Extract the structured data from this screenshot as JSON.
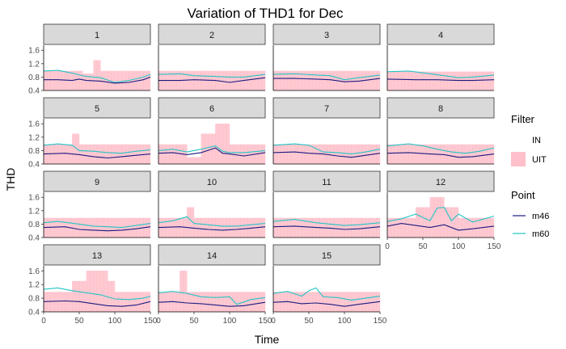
{
  "chart_data": {
    "type": "line",
    "title": "Variation of THD1 for Dec",
    "xlabel": "Time",
    "ylabel": "THD",
    "xlim": [
      0,
      150
    ],
    "ylim": [
      0.4,
      1.75
    ],
    "x_ticks": [
      "0",
      "50",
      "100",
      "150"
    ],
    "y_ticks": [
      "0.4",
      "0.8",
      "1.2",
      "1.6"
    ],
    "facets": [
      "1",
      "2",
      "3",
      "4",
      "5",
      "6",
      "7",
      "8",
      "9",
      "10",
      "11",
      "12",
      "13",
      "14",
      "15"
    ],
    "legend_filter": {
      "title": "Filter",
      "entries": [
        "IN",
        "UIT"
      ],
      "colors": [
        "#ffffff",
        "#ffc0cb"
      ]
    },
    "legend_point": {
      "title": "Point",
      "entries": [
        "m46",
        "m60"
      ],
      "colors": [
        "#1a1a80",
        "#22c4c4"
      ]
    },
    "facet_series": [
      {
        "facet": "1",
        "m46": [
          [
            0,
            0.72
          ],
          [
            20,
            0.72
          ],
          [
            40,
            0.7
          ],
          [
            50,
            0.74
          ],
          [
            60,
            0.7
          ],
          [
            80,
            0.68
          ],
          [
            100,
            0.62
          ],
          [
            120,
            0.64
          ],
          [
            140,
            0.72
          ],
          [
            150,
            0.8
          ]
        ],
        "m60": [
          [
            0,
            0.98
          ],
          [
            20,
            1.0
          ],
          [
            40,
            0.92
          ],
          [
            50,
            0.86
          ],
          [
            60,
            0.82
          ],
          [
            80,
            0.78
          ],
          [
            100,
            0.64
          ],
          [
            120,
            0.7
          ],
          [
            140,
            0.8
          ],
          [
            150,
            0.88
          ]
        ],
        "uit": [
          [
            0,
            0.98
          ],
          [
            50,
            0.98
          ],
          [
            55,
            0.9
          ],
          [
            70,
            1.3
          ],
          [
            80,
            0.98
          ],
          [
            150,
            0.98
          ]
        ]
      },
      {
        "facet": "2",
        "m46": [
          [
            0,
            0.7
          ],
          [
            30,
            0.7
          ],
          [
            50,
            0.72
          ],
          [
            80,
            0.7
          ],
          [
            100,
            0.64
          ],
          [
            120,
            0.7
          ],
          [
            150,
            0.78
          ]
        ],
        "m60": [
          [
            0,
            0.88
          ],
          [
            30,
            0.9
          ],
          [
            50,
            0.84
          ],
          [
            80,
            0.82
          ],
          [
            100,
            0.8
          ],
          [
            120,
            0.8
          ],
          [
            150,
            0.88
          ]
        ],
        "uit": [
          [
            0,
            0.98
          ],
          [
            150,
            0.98
          ]
        ]
      },
      {
        "facet": "3",
        "m46": [
          [
            0,
            0.76
          ],
          [
            30,
            0.76
          ],
          [
            60,
            0.74
          ],
          [
            80,
            0.72
          ],
          [
            100,
            0.66
          ],
          [
            120,
            0.68
          ],
          [
            150,
            0.76
          ]
        ],
        "m60": [
          [
            0,
            0.88
          ],
          [
            30,
            0.9
          ],
          [
            60,
            0.86
          ],
          [
            80,
            0.84
          ],
          [
            100,
            0.72
          ],
          [
            120,
            0.78
          ],
          [
            150,
            0.86
          ]
        ],
        "uit": [
          [
            0,
            0.98
          ],
          [
            150,
            0.98
          ]
        ]
      },
      {
        "facet": "4",
        "m46": [
          [
            0,
            0.74
          ],
          [
            40,
            0.72
          ],
          [
            70,
            0.72
          ],
          [
            100,
            0.7
          ],
          [
            120,
            0.7
          ],
          [
            150,
            0.72
          ]
        ],
        "m60": [
          [
            0,
            0.96
          ],
          [
            30,
            0.98
          ],
          [
            60,
            0.9
          ],
          [
            80,
            0.84
          ],
          [
            100,
            0.78
          ],
          [
            120,
            0.8
          ],
          [
            150,
            0.86
          ]
        ],
        "uit": [
          [
            0,
            0.96
          ],
          [
            150,
            0.96
          ]
        ]
      },
      {
        "facet": "5",
        "m46": [
          [
            0,
            0.7
          ],
          [
            30,
            0.72
          ],
          [
            50,
            0.68
          ],
          [
            70,
            0.62
          ],
          [
            90,
            0.58
          ],
          [
            110,
            0.62
          ],
          [
            130,
            0.66
          ],
          [
            150,
            0.7
          ]
        ],
        "m60": [
          [
            0,
            0.96
          ],
          [
            20,
            1.0
          ],
          [
            40,
            0.96
          ],
          [
            50,
            0.8
          ],
          [
            70,
            0.78
          ],
          [
            90,
            0.74
          ],
          [
            110,
            0.72
          ],
          [
            130,
            0.78
          ],
          [
            150,
            0.82
          ]
        ],
        "uit": [
          [
            0,
            0.98
          ],
          [
            40,
            1.3
          ],
          [
            50,
            0.98
          ],
          [
            150,
            0.98
          ]
        ]
      },
      {
        "facet": "6",
        "m46": [
          [
            0,
            0.72
          ],
          [
            20,
            0.74
          ],
          [
            40,
            0.68
          ],
          [
            60,
            0.74
          ],
          [
            80,
            0.88
          ],
          [
            90,
            0.72
          ],
          [
            100,
            0.7
          ],
          [
            120,
            0.64
          ],
          [
            150,
            0.74
          ]
        ],
        "m60": [
          [
            0,
            0.8
          ],
          [
            20,
            0.84
          ],
          [
            40,
            0.76
          ],
          [
            60,
            0.84
          ],
          [
            80,
            0.94
          ],
          [
            90,
            0.78
          ],
          [
            100,
            0.74
          ],
          [
            120,
            0.74
          ],
          [
            150,
            0.8
          ]
        ],
        "uit": [
          [
            0,
            0.98
          ],
          [
            40,
            0.6
          ],
          [
            60,
            1.3
          ],
          [
            80,
            1.6
          ],
          [
            100,
            0.98
          ],
          [
            150,
            0.98
          ]
        ]
      },
      {
        "facet": "7",
        "m46": [
          [
            0,
            0.74
          ],
          [
            30,
            0.76
          ],
          [
            50,
            0.72
          ],
          [
            70,
            0.7
          ],
          [
            90,
            0.64
          ],
          [
            110,
            0.6
          ],
          [
            130,
            0.66
          ],
          [
            150,
            0.72
          ]
        ],
        "m60": [
          [
            0,
            0.96
          ],
          [
            30,
            1.0
          ],
          [
            50,
            0.96
          ],
          [
            70,
            0.76
          ],
          [
            90,
            0.74
          ],
          [
            110,
            0.7
          ],
          [
            130,
            0.76
          ],
          [
            150,
            0.84
          ]
        ],
        "uit": [
          [
            0,
            0.98
          ],
          [
            150,
            0.98
          ]
        ]
      },
      {
        "facet": "8",
        "m46": [
          [
            0,
            0.72
          ],
          [
            30,
            0.74
          ],
          [
            60,
            0.7
          ],
          [
            80,
            0.68
          ],
          [
            100,
            0.6
          ],
          [
            120,
            0.62
          ],
          [
            150,
            0.7
          ]
        ],
        "m60": [
          [
            0,
            0.94
          ],
          [
            30,
            1.0
          ],
          [
            50,
            0.94
          ],
          [
            70,
            0.84
          ],
          [
            90,
            0.76
          ],
          [
            110,
            0.72
          ],
          [
            130,
            0.78
          ],
          [
            150,
            0.88
          ]
        ],
        "uit": [
          [
            0,
            0.98
          ],
          [
            150,
            0.98
          ]
        ]
      },
      {
        "facet": "9",
        "m46": [
          [
            0,
            0.7
          ],
          [
            30,
            0.72
          ],
          [
            50,
            0.64
          ],
          [
            70,
            0.62
          ],
          [
            90,
            0.6
          ],
          [
            110,
            0.62
          ],
          [
            130,
            0.66
          ],
          [
            150,
            0.72
          ]
        ],
        "m60": [
          [
            0,
            0.84
          ],
          [
            20,
            0.88
          ],
          [
            50,
            0.8
          ],
          [
            70,
            0.74
          ],
          [
            90,
            0.72
          ],
          [
            110,
            0.7
          ],
          [
            130,
            0.76
          ],
          [
            150,
            0.82
          ]
        ],
        "uit": [
          [
            0,
            0.98
          ],
          [
            150,
            0.98
          ]
        ]
      },
      {
        "facet": "10",
        "m46": [
          [
            0,
            0.7
          ],
          [
            30,
            0.72
          ],
          [
            50,
            0.68
          ],
          [
            70,
            0.64
          ],
          [
            90,
            0.62
          ],
          [
            110,
            0.64
          ],
          [
            130,
            0.68
          ],
          [
            150,
            0.72
          ]
        ],
        "m60": [
          [
            0,
            0.84
          ],
          [
            20,
            0.9
          ],
          [
            40,
            1.02
          ],
          [
            50,
            0.82
          ],
          [
            70,
            0.78
          ],
          [
            90,
            0.74
          ],
          [
            110,
            0.74
          ],
          [
            130,
            0.78
          ],
          [
            150,
            0.82
          ]
        ],
        "uit": [
          [
            0,
            0.98
          ],
          [
            40,
            1.3
          ],
          [
            50,
            0.98
          ],
          [
            150,
            0.98
          ]
        ]
      },
      {
        "facet": "11",
        "m46": [
          [
            0,
            0.72
          ],
          [
            30,
            0.74
          ],
          [
            60,
            0.7
          ],
          [
            80,
            0.68
          ],
          [
            100,
            0.64
          ],
          [
            120,
            0.66
          ],
          [
            150,
            0.72
          ]
        ],
        "m60": [
          [
            0,
            0.88
          ],
          [
            30,
            0.94
          ],
          [
            60,
            0.84
          ],
          [
            80,
            0.8
          ],
          [
            100,
            0.76
          ],
          [
            120,
            0.78
          ],
          [
            150,
            0.84
          ]
        ],
        "uit": [
          [
            0,
            0.98
          ],
          [
            150,
            0.98
          ]
        ]
      },
      {
        "facet": "12",
        "m46": [
          [
            0,
            0.74
          ],
          [
            20,
            0.82
          ],
          [
            40,
            0.76
          ],
          [
            60,
            0.7
          ],
          [
            80,
            0.78
          ],
          [
            100,
            0.62
          ],
          [
            120,
            0.66
          ],
          [
            150,
            0.74
          ]
        ],
        "m60": [
          [
            0,
            0.88
          ],
          [
            20,
            0.96
          ],
          [
            40,
            1.1
          ],
          [
            60,
            0.9
          ],
          [
            70,
            1.28
          ],
          [
            80,
            1.3
          ],
          [
            90,
            0.9
          ],
          [
            100,
            1.1
          ],
          [
            120,
            0.86
          ],
          [
            150,
            1.04
          ]
        ],
        "uit": [
          [
            0,
            0.98
          ],
          [
            40,
            1.3
          ],
          [
            60,
            1.6
          ],
          [
            80,
            1.3
          ],
          [
            100,
            0.98
          ],
          [
            150,
            0.98
          ]
        ]
      },
      {
        "facet": "13",
        "m46": [
          [
            0,
            0.7
          ],
          [
            30,
            0.72
          ],
          [
            50,
            0.7
          ],
          [
            70,
            0.64
          ],
          [
            90,
            0.58
          ],
          [
            110,
            0.56
          ],
          [
            130,
            0.6
          ],
          [
            150,
            0.7
          ]
        ],
        "m60": [
          [
            0,
            1.06
          ],
          [
            20,
            1.1
          ],
          [
            40,
            1.02
          ],
          [
            60,
            0.96
          ],
          [
            80,
            0.9
          ],
          [
            100,
            0.78
          ],
          [
            120,
            0.76
          ],
          [
            140,
            0.8
          ],
          [
            150,
            0.86
          ]
        ],
        "uit": [
          [
            0,
            0.98
          ],
          [
            40,
            1.3
          ],
          [
            60,
            1.6
          ],
          [
            90,
            1.3
          ],
          [
            100,
            0.98
          ],
          [
            150,
            0.98
          ]
        ]
      },
      {
        "facet": "14",
        "m46": [
          [
            0,
            0.68
          ],
          [
            20,
            0.7
          ],
          [
            40,
            0.66
          ],
          [
            60,
            0.64
          ],
          [
            80,
            0.6
          ],
          [
            100,
            0.56
          ],
          [
            120,
            0.58
          ],
          [
            150,
            0.68
          ]
        ],
        "m60": [
          [
            0,
            0.96
          ],
          [
            20,
            1.0
          ],
          [
            40,
            0.94
          ],
          [
            60,
            0.84
          ],
          [
            80,
            0.82
          ],
          [
            100,
            0.84
          ],
          [
            110,
            0.62
          ],
          [
            130,
            0.76
          ],
          [
            150,
            0.82
          ]
        ],
        "uit": [
          [
            0,
            0.98
          ],
          [
            30,
            1.6
          ],
          [
            40,
            0.98
          ],
          [
            150,
            0.98
          ]
        ]
      },
      {
        "facet": "15",
        "m46": [
          [
            0,
            0.68
          ],
          [
            20,
            0.7
          ],
          [
            40,
            0.64
          ],
          [
            60,
            0.66
          ],
          [
            80,
            0.62
          ],
          [
            100,
            0.56
          ],
          [
            120,
            0.62
          ],
          [
            150,
            0.7
          ]
        ],
        "m60": [
          [
            0,
            0.94
          ],
          [
            20,
            1.0
          ],
          [
            40,
            0.86
          ],
          [
            50,
            1.02
          ],
          [
            60,
            1.1
          ],
          [
            70,
            0.84
          ],
          [
            90,
            0.82
          ],
          [
            110,
            0.74
          ],
          [
            130,
            0.8
          ],
          [
            150,
            0.86
          ]
        ],
        "uit": [
          [
            0,
            0.98
          ],
          [
            150,
            0.98
          ]
        ]
      }
    ]
  }
}
